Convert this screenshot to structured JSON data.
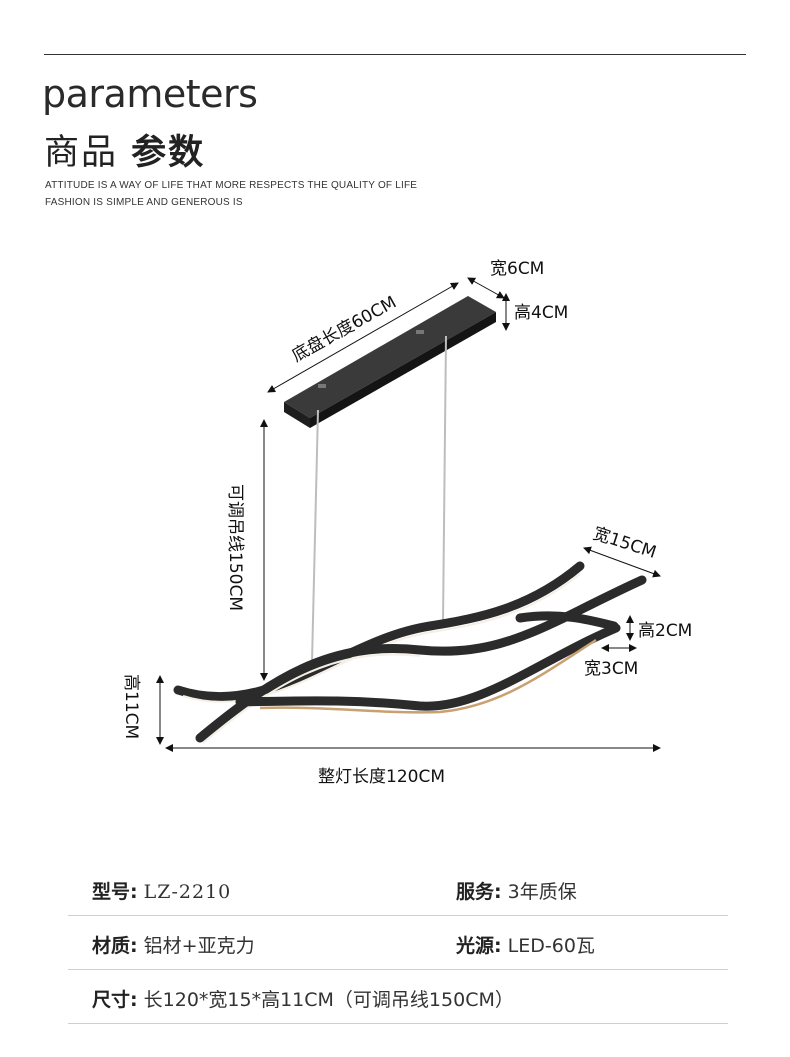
{
  "header": {
    "title_en": "parameters",
    "title_zh_light": "商品",
    "title_zh_bold": "参数",
    "tagline_1": "ATTITUDE IS A WAY OF LIFE THAT MORE RESPECTS THE QUALITY OF LIFE",
    "tagline_2": "FASHION IS SIMPLE AND GENEROUS IS"
  },
  "diagram": {
    "base_length": "底盘长度60CM",
    "base_width": "宽6CM",
    "base_height": "高4CM",
    "cable": "可调吊线150CM",
    "lamp_width": "宽15CM",
    "bar_height": "高2CM",
    "bar_width": "宽3CM",
    "lamp_height": "高11CM",
    "total_length": "整灯长度120CM"
  },
  "specs": [
    {
      "key": "型号:",
      "value": "LZ-2210",
      "key2": "服务:",
      "value2": "3年质保"
    },
    {
      "key": "材质:",
      "value": "铝材+亚克力",
      "key2": "光源:",
      "value2": "LED-60瓦"
    },
    {
      "key": "尺寸:",
      "value": "长120*宽15*高11CM（可调吊线150CM）"
    }
  ],
  "colors": {
    "frame": "#2b2b2b",
    "led": "#f4f0e6",
    "rule": "#cfcfcf"
  }
}
